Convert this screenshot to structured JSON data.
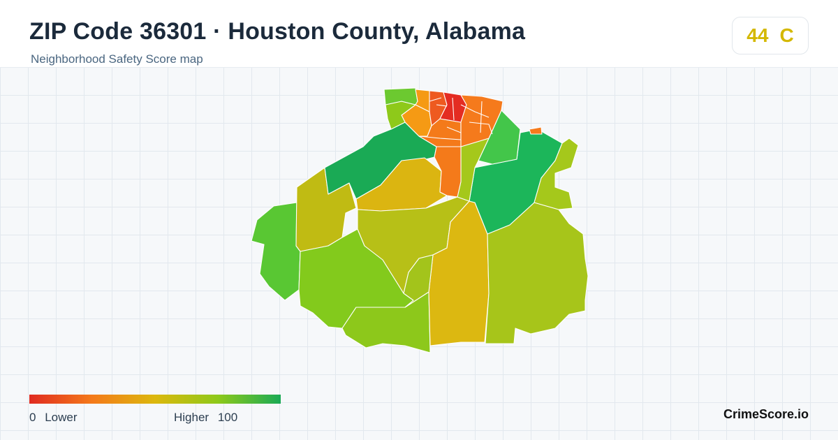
{
  "header": {
    "title": "ZIP Code 36301 · Houston County, Alabama",
    "subtitle": "Neighborhood Safety Score map"
  },
  "score": {
    "value": "44",
    "grade": "C",
    "color": "#d4b800"
  },
  "legend": {
    "min_value": "0",
    "min_label": "Lower",
    "max_label": "Higher",
    "max_value": "100",
    "gradient": [
      "#e02b20",
      "#f47a1a",
      "#dcb80d",
      "#8ec91a",
      "#1aaa55"
    ]
  },
  "brand": "CrimeScore.io",
  "map": {
    "regions": [
      {
        "id": "r-north-core-1",
        "color": "#e42c22"
      },
      {
        "id": "r-north-core-2",
        "color": "#ee5a20"
      },
      {
        "id": "r-north-core-3",
        "color": "#f47a1a"
      },
      {
        "id": "r-north-ne",
        "color": "#f57a1c"
      },
      {
        "id": "r-north-w",
        "color": "#f59a14"
      },
      {
        "id": "r-north-fw",
        "color": "#8ec91a"
      },
      {
        "id": "r-north-top",
        "color": "#6cc930"
      },
      {
        "id": "r-center-strip",
        "color": "#f47a1a"
      },
      {
        "id": "r-green-nw",
        "color": "#1aaa55"
      },
      {
        "id": "r-green-ne",
        "color": "#43c64a"
      },
      {
        "id": "r-green-e",
        "color": "#1cb65a"
      },
      {
        "id": "r-far-e",
        "color": "#a5c81b"
      },
      {
        "id": "r-lime-c",
        "color": "#a3c41b"
      },
      {
        "id": "r-gold-c",
        "color": "#dbb511"
      },
      {
        "id": "r-olive-w",
        "color": "#c0bb13"
      },
      {
        "id": "r-olive-c",
        "color": "#b7c017"
      },
      {
        "id": "r-green-w",
        "color": "#59c733"
      },
      {
        "id": "r-lime-sw",
        "color": "#83ca1c"
      },
      {
        "id": "r-lime-s",
        "color": "#8dc81b"
      },
      {
        "id": "r-gold-s",
        "color": "#dcb811"
      },
      {
        "id": "r-olive-se",
        "color": "#a7c51a"
      },
      {
        "id": "r-se-east",
        "color": "#9cc61a"
      }
    ]
  }
}
